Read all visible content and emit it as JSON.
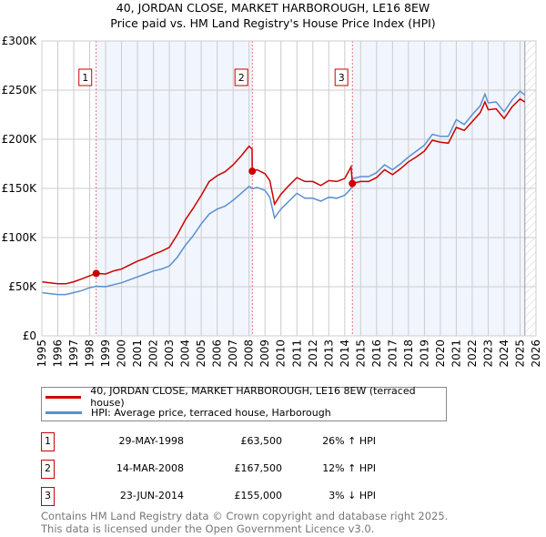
{
  "title": "40, JORDAN CLOSE, MARKET HARBOROUGH, LE16 8EW",
  "subtitle": "Price paid vs. HM Land Registry's House Price Index (HPI)",
  "legend": [
    {
      "label": "40, JORDAN CLOSE, MARKET HARBOROUGH, LE16 8EW (terraced house)",
      "color": "#cc0000"
    },
    {
      "label": "HPI: Average price, terraced house, Harborough",
      "color": "#5b8fd0"
    }
  ],
  "sales": [
    {
      "num": "1",
      "date": "29-MAY-1998",
      "price": "£63,500",
      "hpi": "26% ↑ HPI"
    },
    {
      "num": "2",
      "date": "14-MAR-2008",
      "price": "£167,500",
      "hpi": "12% ↑ HPI"
    },
    {
      "num": "3",
      "date": "23-JUN-2014",
      "price": "£155,000",
      "hpi": "3% ↓ HPI"
    }
  ],
  "footer": [
    "Contains HM Land Registry data © Crown copyright and database right 2025.",
    "This data is licensed under the Open Government Licence v3.0."
  ],
  "chart_data": {
    "type": "line",
    "xlim": [
      1995,
      2026
    ],
    "ylim": [
      0,
      300000
    ],
    "x_ticks": [
      "1995",
      "1996",
      "1997",
      "1998",
      "1999",
      "2000",
      "2001",
      "2002",
      "2003",
      "2004",
      "2005",
      "2006",
      "2007",
      "2008",
      "2009",
      "2010",
      "2011",
      "2012",
      "2013",
      "2014",
      "2015",
      "2016",
      "2017",
      "2018",
      "2019",
      "2020",
      "2021",
      "2022",
      "2023",
      "2024",
      "2025",
      "2026"
    ],
    "y_ticks": [
      {
        "v": 0,
        "label": "£0"
      },
      {
        "v": 50000,
        "label": "£50K"
      },
      {
        "v": 100000,
        "label": "£100K"
      },
      {
        "v": 150000,
        "label": "£150K"
      },
      {
        "v": 200000,
        "label": "£200K"
      },
      {
        "v": 250000,
        "label": "£250K"
      },
      {
        "v": 300000,
        "label": "£300K"
      }
    ],
    "grid": true,
    "forecast_from": 2025.3,
    "shaded_periods": [
      [
        1998.41,
        2008.2
      ],
      [
        2014.48,
        2025.3
      ]
    ],
    "sale_markers": [
      {
        "label": "1",
        "x": 1998.41,
        "y": 63500
      },
      {
        "label": "2",
        "x": 2008.2,
        "y": 167500
      },
      {
        "label": "3",
        "x": 2014.48,
        "y": 155000
      }
    ],
    "x": [
      1995,
      1995.5,
      1996,
      1996.5,
      1997,
      1997.5,
      1998,
      1998.41,
      1999,
      1999.5,
      2000,
      2000.5,
      2001,
      2001.5,
      2002,
      2002.5,
      2003,
      2003.5,
      2004,
      2004.5,
      2005,
      2005.5,
      2006,
      2006.5,
      2007,
      2007.5,
      2008,
      2008.19,
      2008.2,
      2008.5,
      2009,
      2009.3,
      2009.6,
      2010,
      2010.5,
      2011,
      2011.5,
      2012,
      2012.5,
      2013,
      2013.5,
      2014,
      2014.4,
      2014.48,
      2015,
      2015.5,
      2016,
      2016.5,
      2017,
      2017.5,
      2018,
      2018.5,
      2019,
      2019.5,
      2020,
      2020.5,
      2021,
      2021.5,
      2022,
      2022.5,
      2022.8,
      2023,
      2023.5,
      2024,
      2024.5,
      2025,
      2025.3
    ],
    "series": [
      {
        "name": "40, JORDAN CLOSE, MARKET HARBOROUGH, LE16 8EW (terraced house)",
        "color": "#cc0000",
        "values": [
          55000,
          54000,
          53000,
          53000,
          55000,
          58000,
          61000,
          63500,
          63000,
          66000,
          68000,
          72000,
          76000,
          79000,
          83000,
          86000,
          90000,
          103000,
          118000,
          130000,
          143000,
          157000,
          163000,
          167000,
          174000,
          183000,
          193000,
          190000,
          167500,
          169000,
          165000,
          158000,
          134000,
          144000,
          153000,
          161000,
          157000,
          157000,
          153000,
          158000,
          157000,
          160000,
          172000,
          155000,
          157000,
          157000,
          161000,
          169000,
          164000,
          170000,
          177000,
          182000,
          188000,
          199000,
          197000,
          196000,
          212000,
          209000,
          218000,
          227000,
          238000,
          230000,
          231000,
          221000,
          233000,
          241000,
          238000
        ]
      },
      {
        "name": "HPI: Average price, terraced house, Harborough",
        "color": "#5b8fd0",
        "values": [
          44000,
          43000,
          42000,
          42000,
          44000,
          46000,
          49000,
          50400,
          50000,
          52000,
          54000,
          57000,
          60000,
          63000,
          66000,
          68000,
          71000,
          80000,
          92000,
          102000,
          114000,
          124000,
          129000,
          132000,
          138000,
          145000,
          152000,
          150000,
          149600,
          151000,
          148000,
          141000,
          120000,
          129000,
          137000,
          145000,
          140000,
          140000,
          137000,
          141000,
          140000,
          143000,
          150000,
          159800,
          162000,
          162000,
          166000,
          174000,
          169000,
          175000,
          182000,
          188000,
          194000,
          205000,
          203000,
          203000,
          220000,
          215000,
          225000,
          234000,
          246000,
          237000,
          238000,
          228000,
          240000,
          249000,
          245000
        ]
      }
    ]
  }
}
